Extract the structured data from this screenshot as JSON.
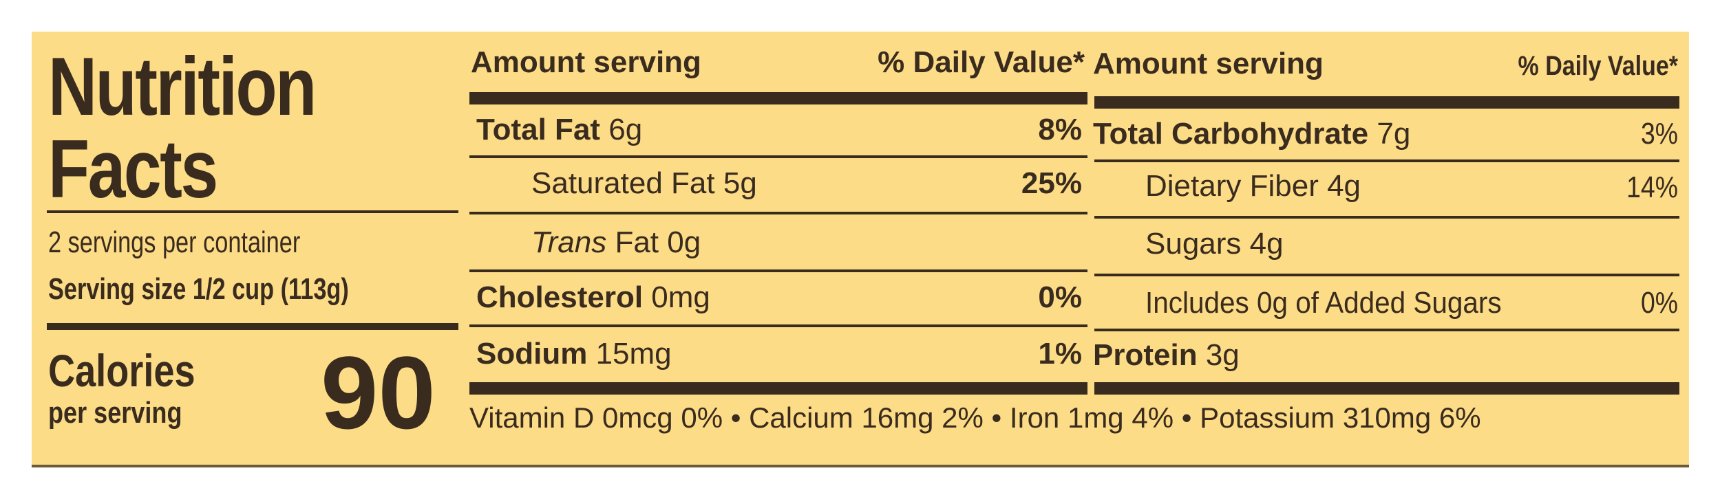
{
  "left": {
    "title_line1": "Nutrition",
    "title_line2": "Facts",
    "servings": "2 servings per container",
    "serving_size_label": "Serving size",
    "serving_size_value": "1/2 cup (113g)",
    "calories_label": "Calories",
    "calories_sub": "per serving",
    "calories_value": "90"
  },
  "table1": {
    "hdr_amount": "Amount serving",
    "hdr_dv": "% Daily Value*",
    "rows": [
      {
        "name": "Total Fat",
        "amount": "6g",
        "dv": "8%"
      },
      {
        "name": "Saturated Fat",
        "amount": "5g",
        "dv": "25%"
      },
      {
        "name": "Trans",
        "amount": "Fat 0g",
        "dv": ""
      },
      {
        "name": "Cholesterol",
        "amount": "0mg",
        "dv": "0%"
      },
      {
        "name": "Sodium",
        "amount": "15mg",
        "dv": "1%"
      }
    ]
  },
  "table2": {
    "hdr_amount": "Amount serving",
    "hdr_dv": "% Daily Value*",
    "rows": [
      {
        "name": "Total Carbohydrate",
        "amount": "7g",
        "dv": "3%"
      },
      {
        "name": "Dietary Fiber",
        "amount": "4g",
        "dv": "14%"
      },
      {
        "name": "Sugars",
        "amount": "4g",
        "dv": ""
      },
      {
        "name": "Includes 0g of Added Sugars",
        "amount": "",
        "dv": "0%"
      },
      {
        "name": "Protein",
        "amount": "3g",
        "dv": ""
      }
    ]
  },
  "footer": "Vitamin D 0mcg 0% • Calcium 16mg 2% • Iron 1mg 4% • Potassium 310mg 6%"
}
